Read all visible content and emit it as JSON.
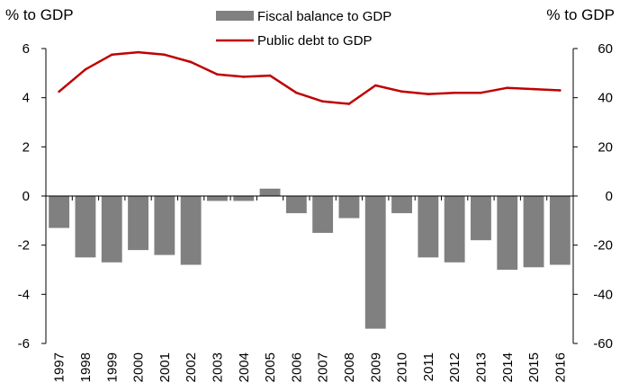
{
  "chart_data": {
    "type": "bar",
    "y_axis_title_left": "% to GDP",
    "y_axis_title_right": "% to GDP",
    "categories": [
      "1997",
      "1998",
      "1999",
      "2000",
      "2001",
      "2002",
      "2003",
      "2004",
      "2005",
      "2006",
      "2007",
      "2008",
      "2009",
      "2010",
      "2011",
      "2012",
      "2013",
      "2014",
      "2015",
      "2016"
    ],
    "ylim_left": [
      -6,
      6
    ],
    "yticks_left": [
      "6",
      "4",
      "2",
      "0",
      "-2",
      "-4",
      "-6"
    ],
    "ylim_right": [
      -60,
      60
    ],
    "yticks_right": [
      "60",
      "40",
      "20",
      "0",
      "-20",
      "-40",
      "-60"
    ],
    "grid": false,
    "legend_position": "top-center",
    "series": [
      {
        "name": "Fiscal balance to GDP",
        "type": "bar",
        "axis": "left",
        "color": "#808080",
        "values": [
          -1.3,
          -2.5,
          -2.7,
          -2.2,
          -2.4,
          -2.8,
          -0.2,
          -0.2,
          0.3,
          -0.7,
          -1.5,
          -0.9,
          -5.4,
          -0.7,
          -2.5,
          -2.7,
          -1.8,
          -3.0,
          -2.9,
          -2.8
        ]
      },
      {
        "name": "Public debt to GDP",
        "type": "line",
        "axis": "right",
        "color": "#c00000",
        "values": [
          42.5,
          51.5,
          57.5,
          58.5,
          57.5,
          54.5,
          49.5,
          48.5,
          49.0,
          42.0,
          38.5,
          37.5,
          45.0,
          42.5,
          41.5,
          42.0,
          42.0,
          44.0,
          43.5,
          43.0
        ]
      }
    ]
  }
}
